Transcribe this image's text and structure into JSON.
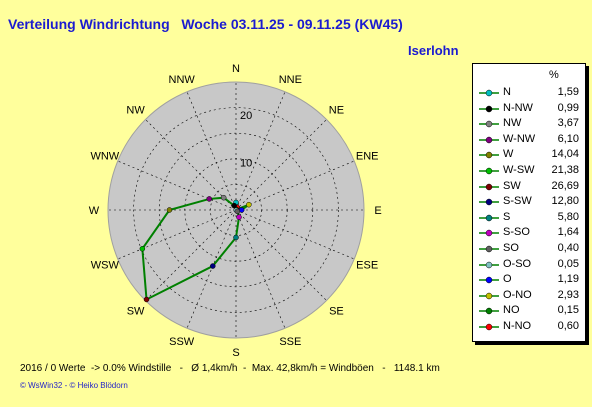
{
  "header": {
    "title": "Verteilung Windrichtung   Woche 03.11.25 - 09.11.25 (KW45)",
    "location": "Iserlohn"
  },
  "footer": {
    "stats": "2016 / 0 Werte  -> 0.0% Windstille   -   Ø 1,4km/h  -  Max. 42,8km/h = Windböen   -   1148.1 km",
    "credit": "© WsWin32  -  © Heiko Blödorn"
  },
  "chart_data": {
    "type": "radar",
    "title": "Verteilung Windrichtung   Woche 03.11.25 - 09.11.25 (KW45)",
    "directions": [
      "N",
      "NNE",
      "NE",
      "ENE",
      "E",
      "ESE",
      "SE",
      "SSE",
      "S",
      "SSW",
      "SW",
      "WSW",
      "W",
      "WNW",
      "NW",
      "NNW"
    ],
    "radial_ticks": [
      10,
      20
    ],
    "rmax": 27,
    "series_color": "#008000",
    "values_by_direction": [
      1.59,
      0.6,
      0.15,
      2.93,
      1.19,
      0.05,
      0.4,
      1.64,
      5.8,
      12.8,
      26.69,
      21.38,
      14.04,
      6.1,
      3.67,
      0.99
    ],
    "legend": {
      "unit": "%",
      "entries": [
        {
          "label": "N",
          "value": "1,59",
          "color": "#00c0c0"
        },
        {
          "label": "N-NW",
          "value": "0,99",
          "color": "#000000"
        },
        {
          "label": "NW",
          "value": "3,67",
          "color": "#808080"
        },
        {
          "label": "W-NW",
          "value": "6,10",
          "color": "#800080"
        },
        {
          "label": "W",
          "value": "14,04",
          "color": "#808000"
        },
        {
          "label": "W-SW",
          "value": "21,38",
          "color": "#00c000"
        },
        {
          "label": "SW",
          "value": "26,69",
          "color": "#800000"
        },
        {
          "label": "S-SW",
          "value": "12,80",
          "color": "#000080"
        },
        {
          "label": "S",
          "value": "5,80",
          "color": "#008080"
        },
        {
          "label": "S-SO",
          "value": "1,64",
          "color": "#c000c0"
        },
        {
          "label": "SO",
          "value": "0,40",
          "color": "#606060"
        },
        {
          "label": "O-SO",
          "value": "0,05",
          "color": "#80c0c0"
        },
        {
          "label": "O",
          "value": "1,19",
          "color": "#0000ff"
        },
        {
          "label": "O-NO",
          "value": "2,93",
          "color": "#c0c000"
        },
        {
          "label": "NO",
          "value": "0,15",
          "color": "#008000"
        },
        {
          "label": "N-NO",
          "value": "0,60",
          "color": "#ff0000"
        }
      ]
    }
  }
}
